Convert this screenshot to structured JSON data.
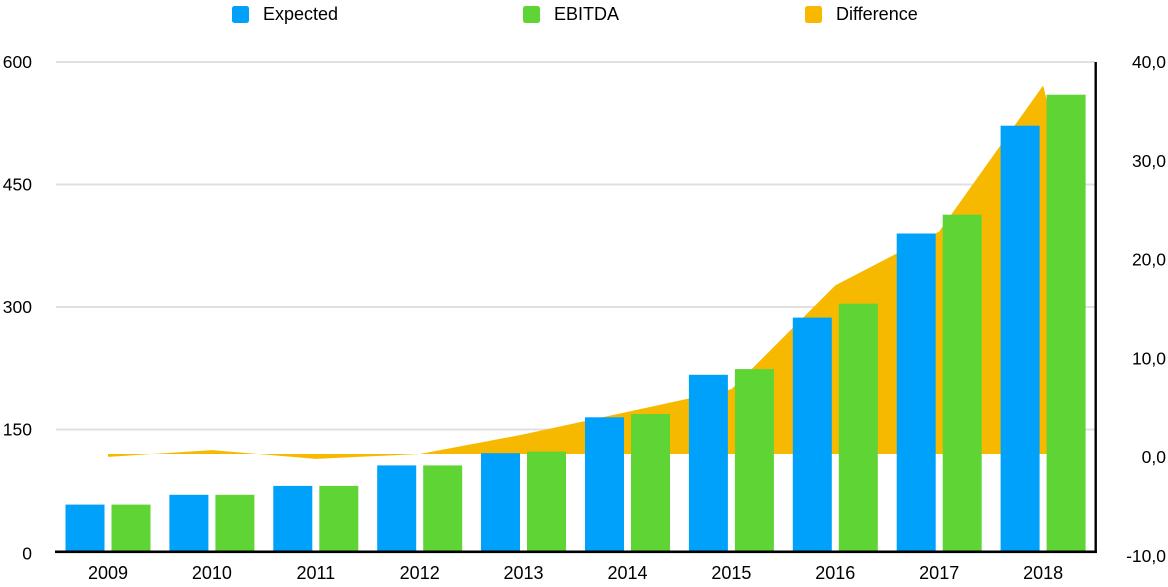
{
  "legend": [
    {
      "label": "Expected",
      "color": "#00A1FA"
    },
    {
      "label": "EBITDA",
      "color": "#5ED435"
    },
    {
      "label": "Difference",
      "color": "#F7B900"
    }
  ],
  "chart_data": {
    "type": "combo-bar-area",
    "title": "",
    "categories": [
      "2009",
      "2010",
      "2011",
      "2012",
      "2013",
      "2014",
      "2015",
      "2016",
      "2017",
      "2018"
    ],
    "series": [
      {
        "name": "Expected",
        "type": "bar",
        "axis": "left",
        "color": "#00A1FA",
        "values": [
          58,
          70,
          81,
          106,
          121,
          165,
          217,
          287,
          390,
          522
        ]
      },
      {
        "name": "EBITDA",
        "type": "bar",
        "axis": "left",
        "color": "#5ED435",
        "values": [
          58,
          70,
          81,
          106,
          123,
          169,
          224,
          304,
          413,
          560
        ]
      },
      {
        "name": "Difference",
        "type": "area",
        "axis": "right",
        "color": "#F7B900",
        "values": [
          -0.3,
          0.4,
          -0.5,
          0.0,
          2.0,
          4.3,
          6.6,
          17.2,
          22.7,
          37.6
        ]
      }
    ],
    "left_axis": {
      "min": 0,
      "max": 600,
      "tick_labels": [
        "600",
        "450",
        "300",
        "150",
        "0"
      ]
    },
    "right_axis": {
      "min": -10,
      "max": 40,
      "tick_labels": [
        "40,0",
        "30,0",
        "20,0",
        "10,0",
        "0,0",
        "-10,0"
      ]
    },
    "grid": true,
    "legend_position": "top",
    "gridline_color": "#E0E0E0",
    "axis_line_color": "#000000"
  }
}
